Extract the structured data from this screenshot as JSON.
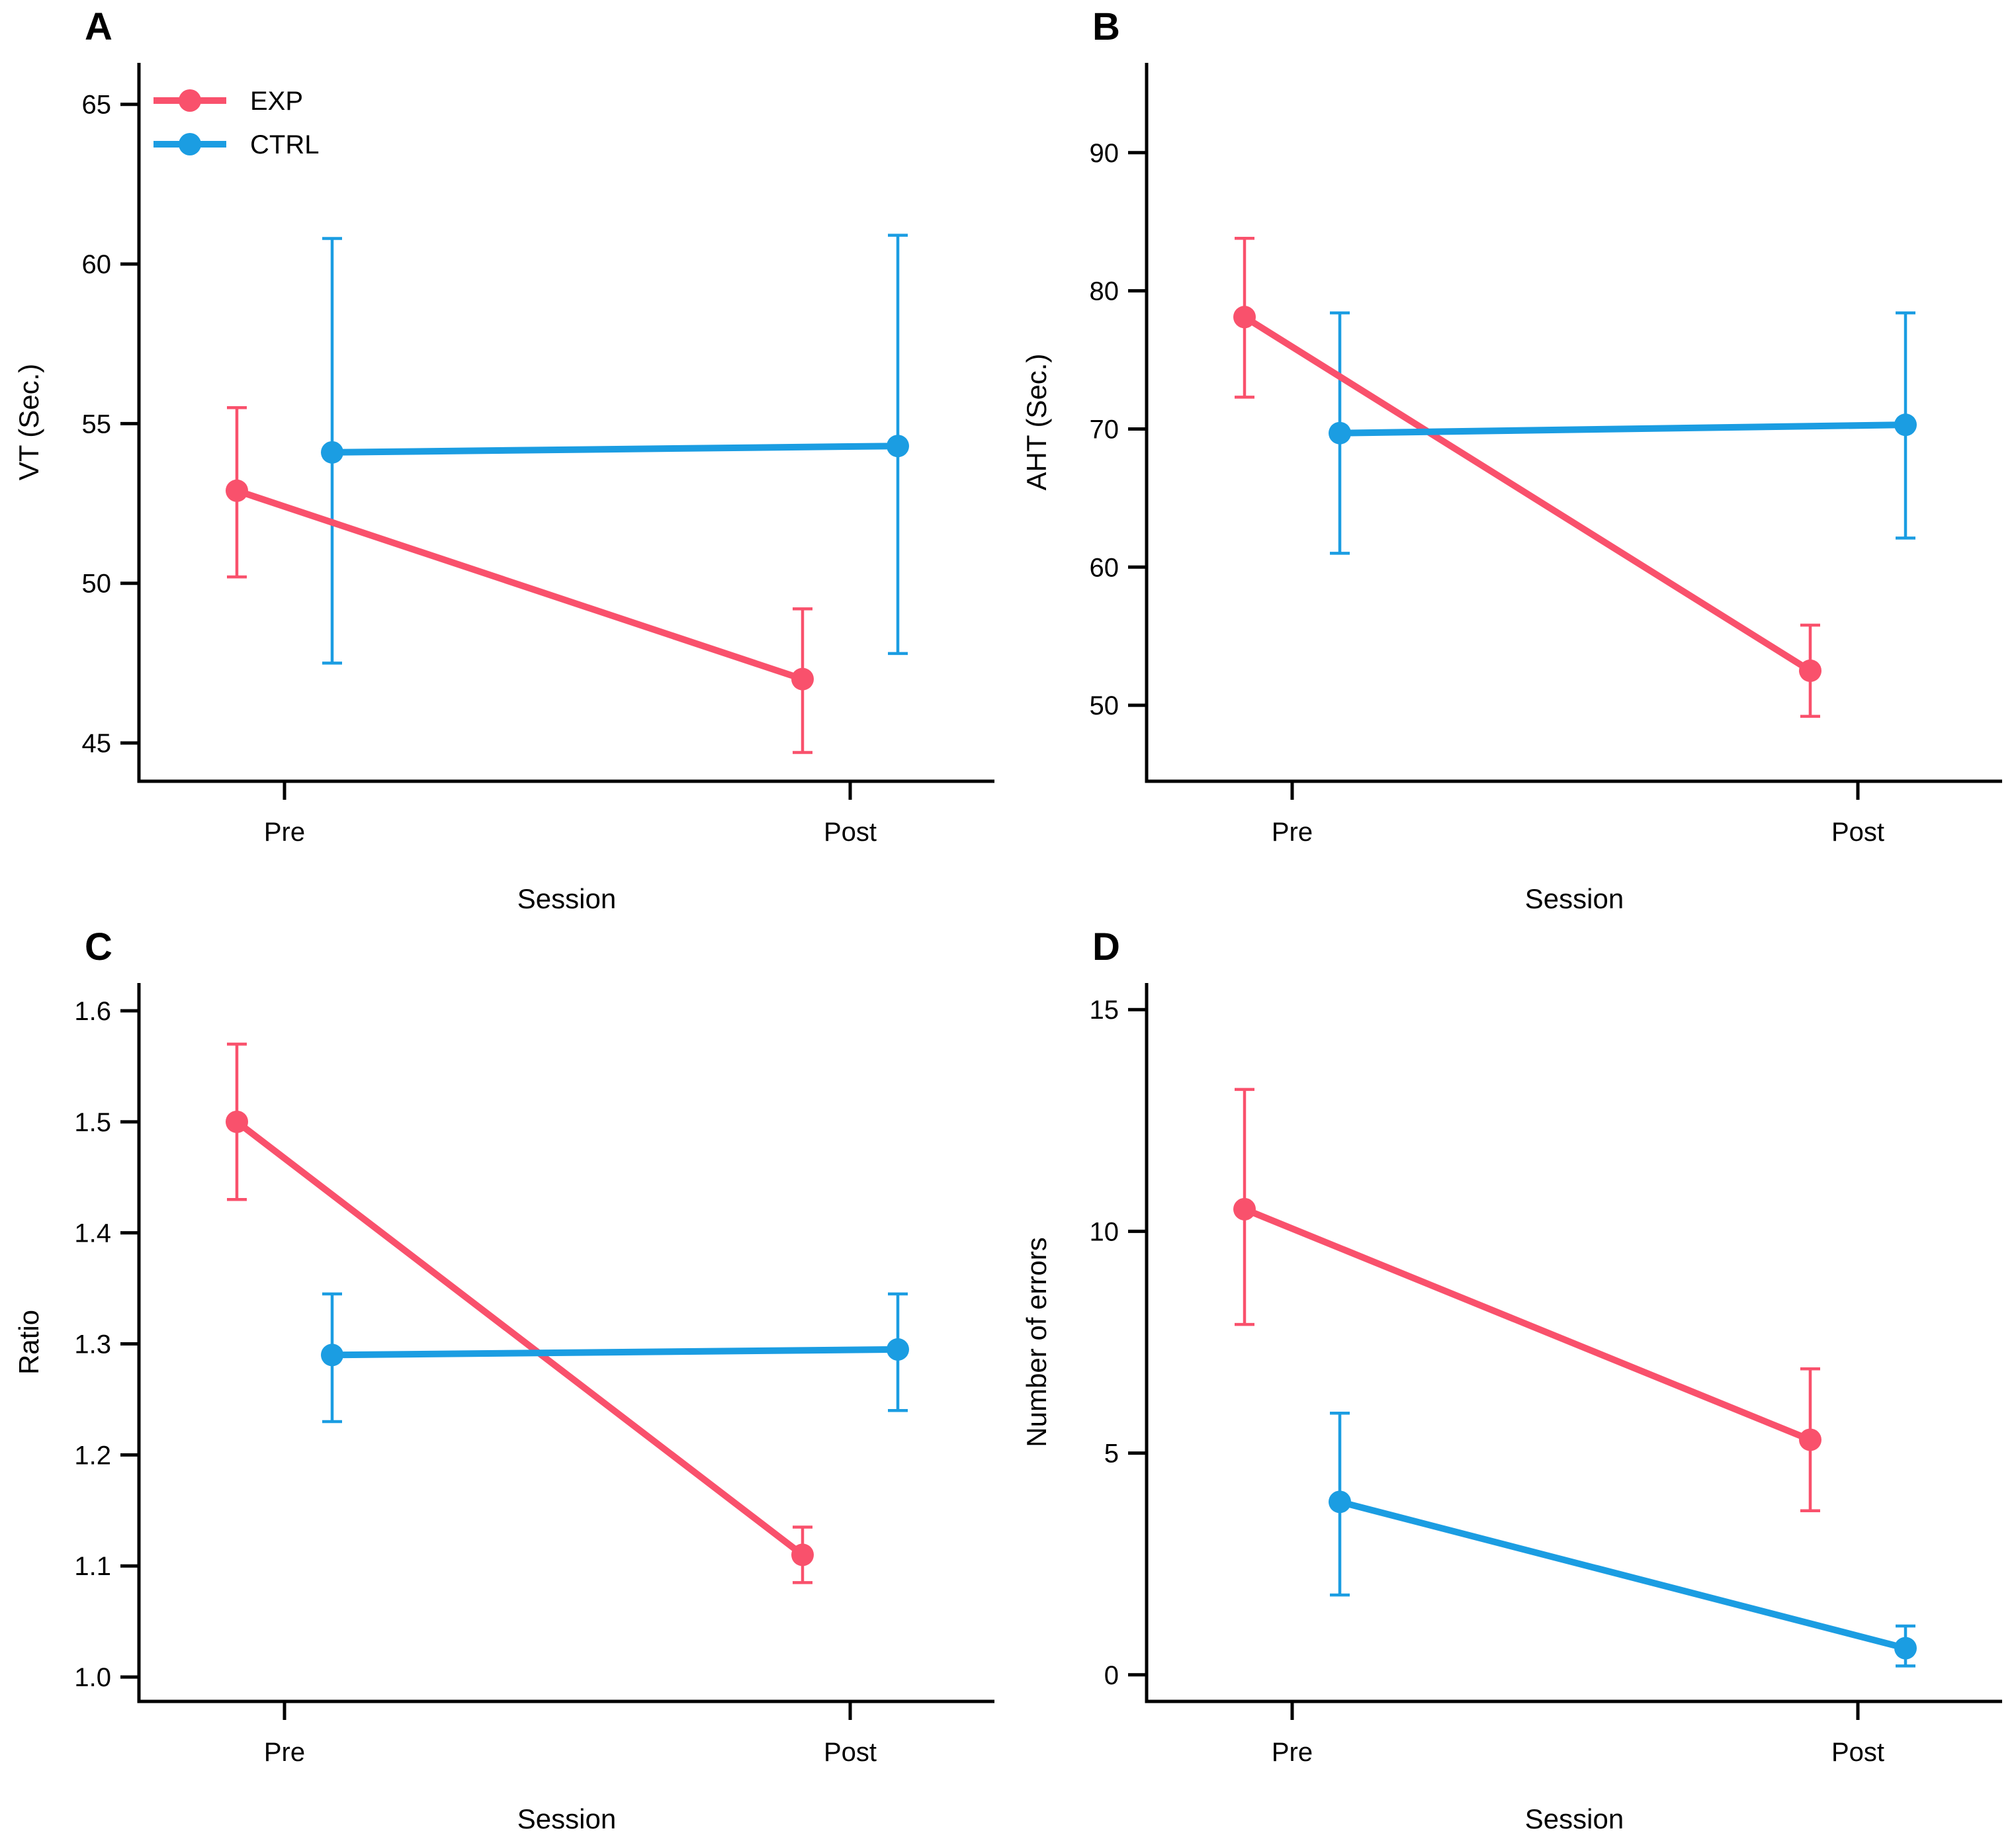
{
  "figure": {
    "panel_letters": [
      "A",
      "B",
      "C",
      "D"
    ],
    "x_axis_label": "Session",
    "categories": [
      "Pre",
      "Post"
    ]
  },
  "colors": {
    "exp": "#F9516C",
    "ctrl": "#1B9DE2",
    "axis": "#000000",
    "background": "#FFFFFF"
  },
  "legend": {
    "shown_in_panel": "A",
    "items": [
      {
        "label": "EXP",
        "color_key": "exp"
      },
      {
        "label": "CTRL",
        "color_key": "ctrl"
      }
    ]
  },
  "chart_data": [
    {
      "panel": "A",
      "type": "line",
      "xlabel": "Session",
      "ylabel": "VT (Sec.)",
      "categories": [
        "Pre",
        "Post"
      ],
      "ylim": [
        43.8,
        66.3
      ],
      "yticks": [
        45,
        50,
        55,
        60,
        65
      ],
      "ytick_labels": [
        "45",
        "50",
        "55",
        "60",
        "65"
      ],
      "grid": false,
      "legend": true,
      "legend_position": "top-left",
      "series": [
        {
          "name": "EXP",
          "color_key": "exp",
          "values": [
            52.9,
            47.0
          ],
          "ci_low": [
            50.2,
            44.7
          ],
          "ci_high": [
            55.5,
            49.2
          ]
        },
        {
          "name": "CTRL",
          "color_key": "ctrl",
          "values": [
            54.1,
            54.3
          ],
          "ci_low": [
            47.5,
            47.8
          ],
          "ci_high": [
            60.8,
            60.9
          ]
        }
      ]
    },
    {
      "panel": "B",
      "type": "line",
      "xlabel": "Session",
      "ylabel": "AHT (Sec.)",
      "categories": [
        "Pre",
        "Post"
      ],
      "ylim": [
        44.5,
        96.5
      ],
      "yticks": [
        50,
        60,
        70,
        80,
        90
      ],
      "ytick_labels": [
        "50",
        "60",
        "70",
        "80",
        "90"
      ],
      "grid": false,
      "legend": false,
      "series": [
        {
          "name": "EXP",
          "color_key": "exp",
          "values": [
            78.1,
            52.5
          ],
          "ci_low": [
            72.3,
            49.2
          ],
          "ci_high": [
            83.8,
            55.8
          ]
        },
        {
          "name": "CTRL",
          "color_key": "ctrl",
          "values": [
            69.7,
            70.3
          ],
          "ci_low": [
            61.0,
            62.1
          ],
          "ci_high": [
            78.4,
            78.4
          ]
        }
      ]
    },
    {
      "panel": "C",
      "type": "line",
      "xlabel": "Session",
      "ylabel": "Ratio",
      "categories": [
        "Pre",
        "Post"
      ],
      "ylim": [
        0.978,
        1.625
      ],
      "yticks": [
        1.0,
        1.1,
        1.2,
        1.3,
        1.4,
        1.5,
        1.6
      ],
      "ytick_labels": [
        "1.0",
        "1.1",
        "1.2",
        "1.3",
        "1.4",
        "1.5",
        "1.6"
      ],
      "grid": false,
      "legend": false,
      "series": [
        {
          "name": "EXP",
          "color_key": "exp",
          "values": [
            1.5,
            1.11
          ],
          "ci_low": [
            1.43,
            1.085
          ],
          "ci_high": [
            1.57,
            1.135
          ]
        },
        {
          "name": "CTRL",
          "color_key": "ctrl",
          "values": [
            1.29,
            1.295
          ],
          "ci_low": [
            1.23,
            1.24
          ],
          "ci_high": [
            1.345,
            1.345
          ]
        }
      ]
    },
    {
      "panel": "D",
      "type": "line",
      "xlabel": "Session",
      "ylabel": "Number of errors",
      "categories": [
        "Pre",
        "Post"
      ],
      "ylim": [
        -0.6,
        15.6
      ],
      "yticks": [
        0,
        5,
        10,
        15
      ],
      "ytick_labels": [
        "0",
        "5",
        "10",
        "15"
      ],
      "grid": false,
      "legend": false,
      "series": [
        {
          "name": "EXP",
          "color_key": "exp",
          "values": [
            10.5,
            5.3
          ],
          "ci_low": [
            7.9,
            3.7
          ],
          "ci_high": [
            13.2,
            6.9
          ]
        },
        {
          "name": "CTRL",
          "color_key": "ctrl",
          "values": [
            3.9,
            0.6
          ],
          "ci_low": [
            1.8,
            0.2
          ],
          "ci_high": [
            5.9,
            1.1
          ]
        }
      ]
    }
  ]
}
